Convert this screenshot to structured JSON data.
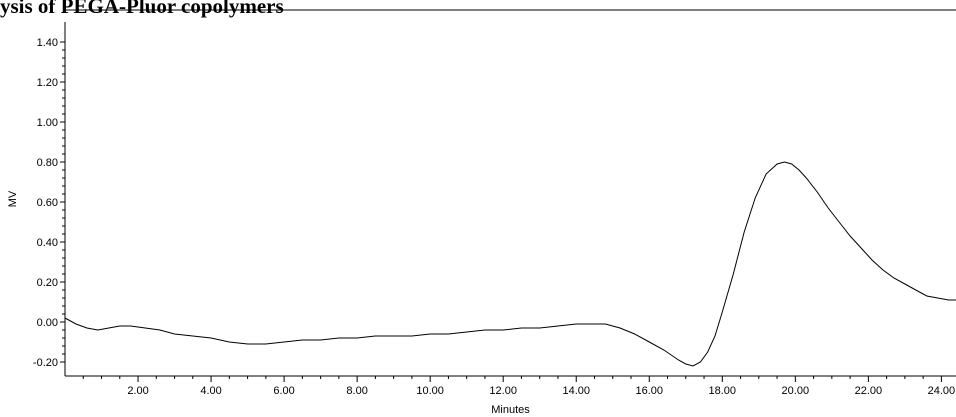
{
  "chart_title": "ysis of PEGA-Pluor copolymers",
  "chart_data": {
    "type": "line",
    "title": "ysis of PEGA-Pluor copolymers",
    "xlabel": "Minutes",
    "ylabel": "MV",
    "xlim": [
      0,
      24.4
    ],
    "ylim": [
      -0.27,
      1.5
    ],
    "grid": false,
    "x_ticks": [
      2,
      4,
      6,
      8,
      10,
      12,
      14,
      16,
      18,
      20,
      22,
      24
    ],
    "x_tick_labels": [
      "2.00",
      "4.00",
      "6.00",
      "8.00",
      "10.00",
      "12.00",
      "14.00",
      "16.00",
      "18.00",
      "20.00",
      "22.00",
      "24.00"
    ],
    "y_ticks": [
      -0.2,
      0,
      0.2,
      0.4,
      0.6,
      0.8,
      1.0,
      1.2,
      1.4
    ],
    "y_tick_labels": [
      "-0.20",
      "0.00",
      "0.20",
      "0.40",
      "0.60",
      "0.80",
      "1.00",
      "1.20",
      "1.40"
    ],
    "series": [
      {
        "x": [
          0.0,
          0.3,
          0.6,
          0.9,
          1.2,
          1.5,
          1.8,
          2.2,
          2.6,
          3.0,
          3.5,
          4.0,
          4.5,
          5.0,
          5.5,
          6.0,
          6.5,
          7.0,
          7.5,
          8.0,
          8.5,
          9.0,
          9.5,
          10.0,
          10.5,
          11.0,
          11.5,
          12.0,
          12.5,
          13.0,
          13.5,
          14.0,
          14.5,
          14.8,
          15.2,
          15.6,
          16.0,
          16.4,
          16.8,
          17.0,
          17.2,
          17.4,
          17.6,
          17.8,
          18.0,
          18.3,
          18.6,
          18.9,
          19.2,
          19.5,
          19.7,
          19.9,
          20.1,
          20.3,
          20.6,
          20.9,
          21.2,
          21.5,
          21.8,
          22.1,
          22.4,
          22.7,
          23.0,
          23.3,
          23.6,
          23.9,
          24.2,
          24.4
        ],
        "y": [
          0.02,
          -0.01,
          -0.03,
          -0.04,
          -0.03,
          -0.02,
          -0.02,
          -0.03,
          -0.04,
          -0.06,
          -0.07,
          -0.08,
          -0.1,
          -0.11,
          -0.11,
          -0.1,
          -0.09,
          -0.09,
          -0.08,
          -0.08,
          -0.07,
          -0.07,
          -0.07,
          -0.06,
          -0.06,
          -0.05,
          -0.04,
          -0.04,
          -0.03,
          -0.03,
          -0.02,
          -0.01,
          -0.01,
          -0.01,
          -0.03,
          -0.06,
          -0.1,
          -0.14,
          -0.19,
          -0.21,
          -0.22,
          -0.2,
          -0.15,
          -0.07,
          0.05,
          0.24,
          0.45,
          0.62,
          0.74,
          0.79,
          0.8,
          0.79,
          0.76,
          0.72,
          0.65,
          0.57,
          0.5,
          0.43,
          0.37,
          0.31,
          0.26,
          0.22,
          0.19,
          0.16,
          0.13,
          0.12,
          0.11,
          0.11
        ]
      }
    ]
  }
}
